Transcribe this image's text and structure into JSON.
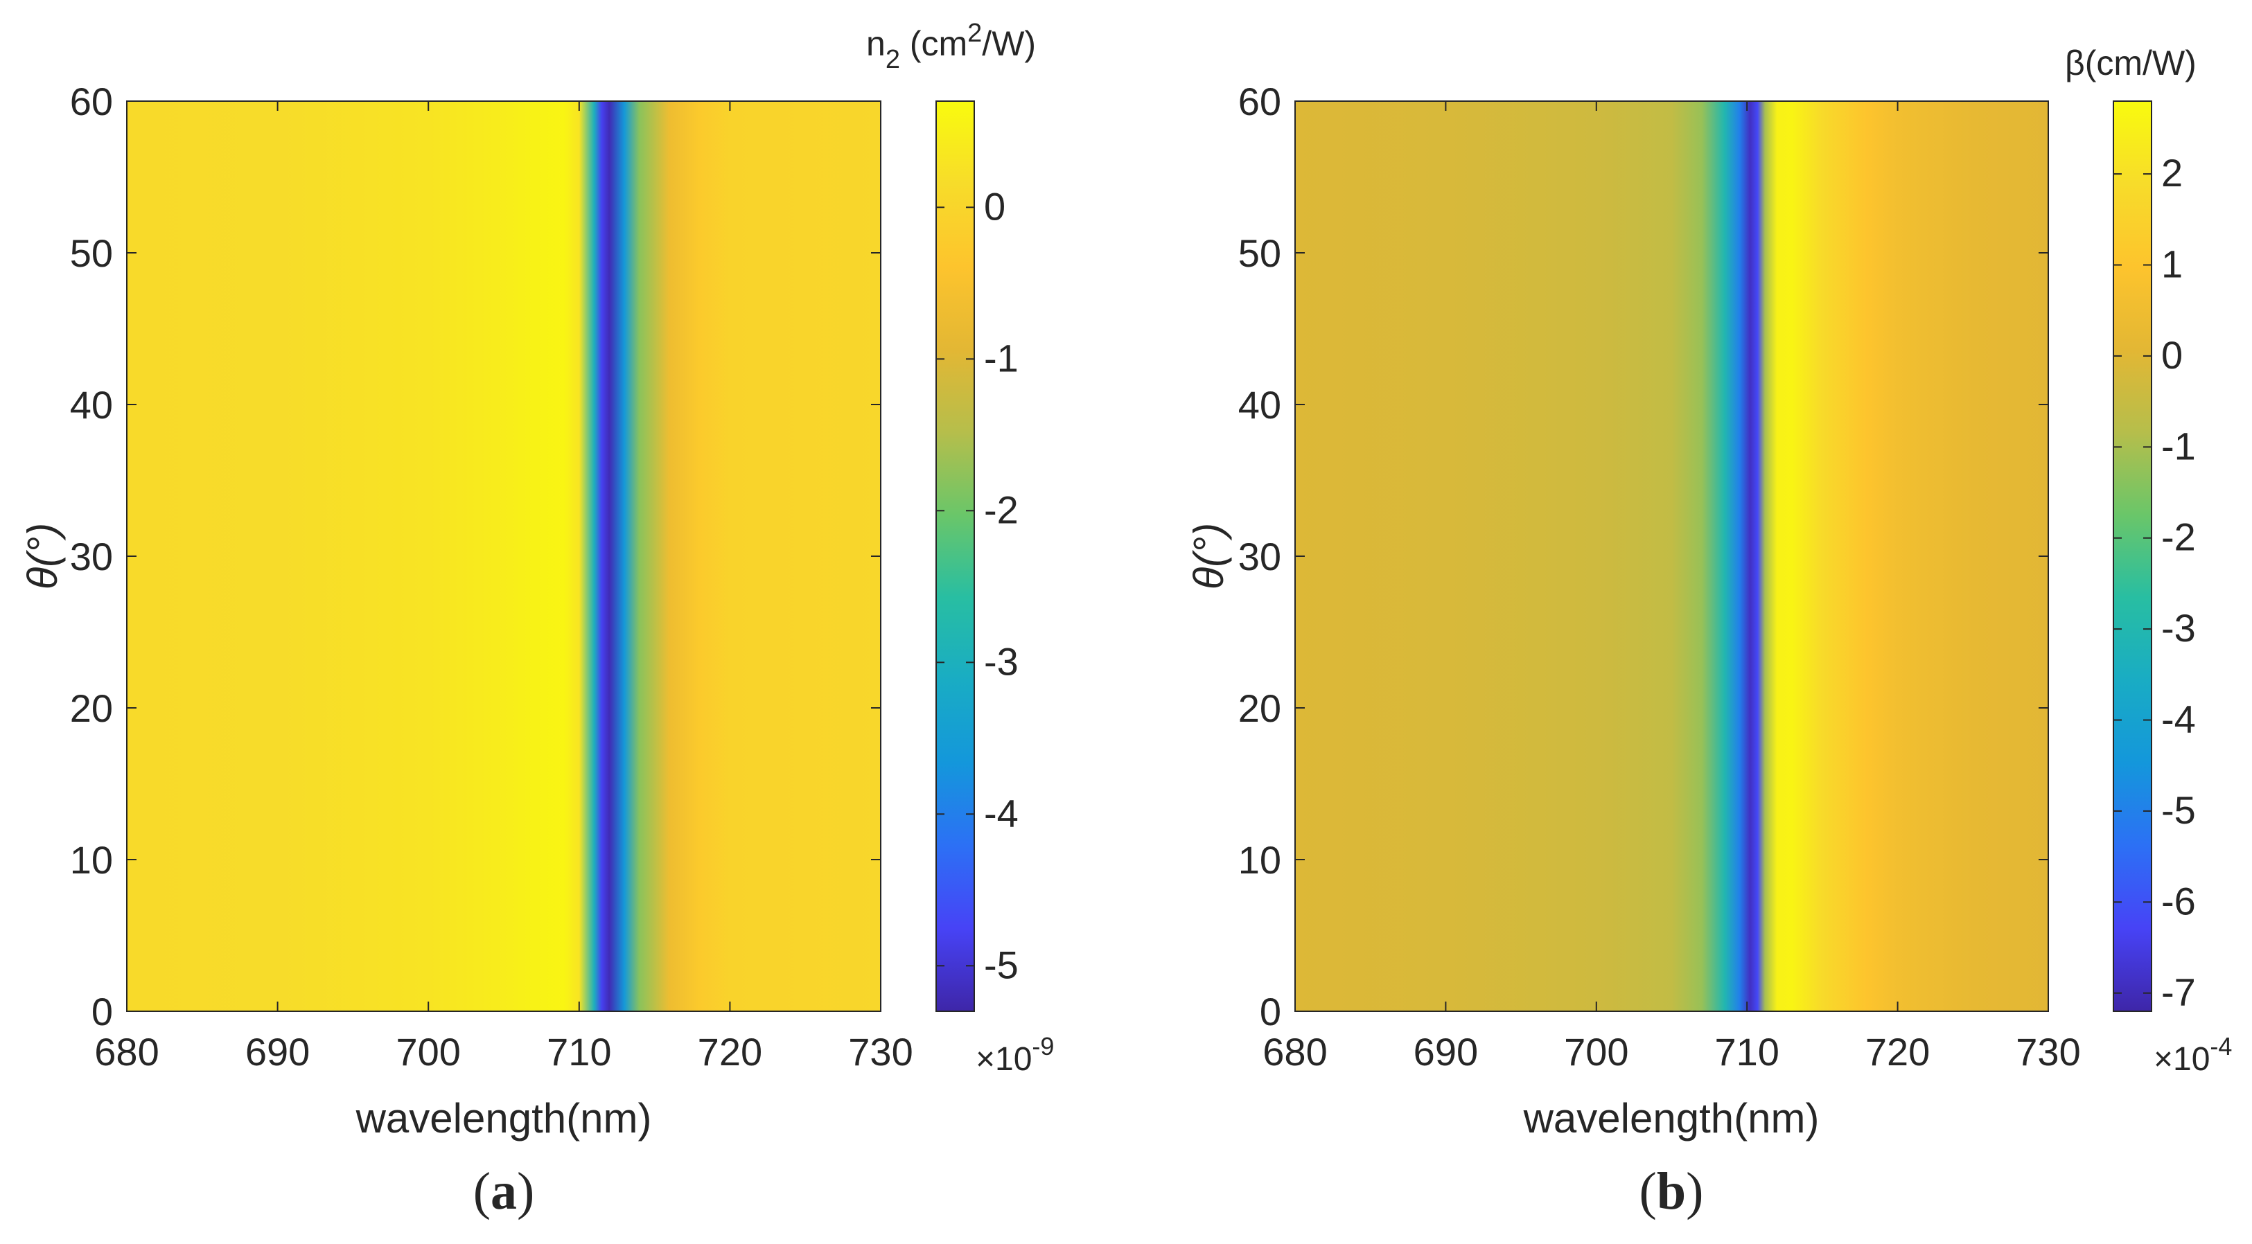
{
  "colors": {
    "parula": [
      "#3E26A8",
      "#4743F6",
      "#2C70F5",
      "#1497DB",
      "#19ACC4",
      "#28BEA2",
      "#6AC669",
      "#B6BE4B",
      "#E3B734",
      "#FDC42D",
      "#F7DC2A",
      "#F9FB0E"
    ]
  },
  "chart_data": [
    {
      "type": "heatmap",
      "panel_label": "a",
      "xlabel": "wavelength(nm)",
      "ylabel": "θ(°)",
      "xlim": [
        680,
        730
      ],
      "ylim": [
        0,
        60
      ],
      "xticks": [
        "680",
        "690",
        "700",
        "710",
        "720",
        "730"
      ],
      "yticks": [
        "0",
        "10",
        "20",
        "30",
        "40",
        "50",
        "60"
      ],
      "colorbar": {
        "title": "n",
        "title_sub": "2",
        "title_unit_pre": " (cm",
        "title_unit_sup": "2",
        "title_unit_post": "/W)",
        "clim": [
          -5.3,
          0.7
        ],
        "ticks": [
          "0",
          "-1",
          "-2",
          "-3",
          "-4",
          "-5"
        ],
        "tick_values": [
          0,
          -1,
          -2,
          -3,
          -4,
          -5
        ],
        "exponent_base": "×10",
        "exponent": "-9"
      },
      "profile": {
        "wavelength": [
          680,
          690,
          700,
          705,
          707,
          709,
          710,
          711,
          711.5,
          712,
          713,
          714,
          716,
          718,
          720,
          725,
          730
        ],
        "value": [
          0.1,
          0.15,
          0.3,
          0.45,
          0.55,
          0.6,
          0.3,
          -3.0,
          -4.8,
          -5.2,
          -3.6,
          -1.8,
          -0.7,
          -0.25,
          -0.05,
          0.0,
          0.05
        ]
      }
    },
    {
      "type": "heatmap",
      "panel_label": "b",
      "xlabel": "wavelength(nm)",
      "ylabel": "θ(°)",
      "xlim": [
        680,
        730
      ],
      "ylim": [
        0,
        60
      ],
      "xticks": [
        "680",
        "690",
        "700",
        "710",
        "720",
        "730"
      ],
      "yticks": [
        "0",
        "10",
        "20",
        "30",
        "40",
        "50",
        "60"
      ],
      "colorbar": {
        "title": "β(cm/W)",
        "clim": [
          -7.2,
          2.8
        ],
        "ticks": [
          "2",
          "1",
          "0",
          "-1",
          "-2",
          "-3",
          "-4",
          "-5",
          "-6",
          "-7"
        ],
        "tick_values": [
          2,
          1,
          0,
          -1,
          -2,
          -3,
          -4,
          -5,
          -6,
          -7
        ],
        "exponent_base": "×10",
        "exponent": "-4"
      },
      "profile": {
        "wavelength": [
          680,
          690,
          700,
          705,
          707,
          708.5,
          709.5,
          710.2,
          710.7,
          711.2,
          712,
          713,
          715,
          718,
          720,
          725,
          730
        ],
        "value": [
          -0.05,
          -0.15,
          -0.35,
          -0.6,
          -1.2,
          -3.0,
          -5.0,
          -6.9,
          -6.2,
          -1.0,
          2.5,
          2.6,
          1.8,
          1.0,
          0.6,
          0.2,
          0.05
        ]
      }
    }
  ]
}
